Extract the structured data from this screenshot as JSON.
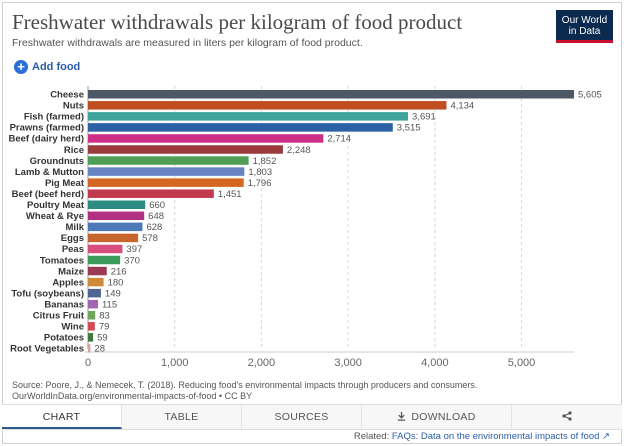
{
  "header": {
    "title": "Freshwater withdrawals per kilogram of food product",
    "subtitle": "Freshwater withdrawals are measured in liters per kilogram of food product.",
    "logo_line1": "Our World",
    "logo_line2": "in Data",
    "add_food_label": "Add food"
  },
  "chart_data": {
    "type": "bar",
    "orientation": "horizontal",
    "title": "Freshwater withdrawals per kilogram of food product",
    "xlim": [
      0,
      5605
    ],
    "xticks": [
      0,
      1000,
      2000,
      3000,
      4000,
      5000
    ],
    "xtick_labels": [
      "0",
      "1,000",
      "2,000",
      "3,000",
      "4,000",
      "5,000"
    ],
    "grid": "vertical dashed",
    "categories": [
      "Cheese",
      "Nuts",
      "Fish (farmed)",
      "Prawns (farmed)",
      "Beef (dairy herd)",
      "Rice",
      "Groundnuts",
      "Lamb & Mutton",
      "Pig Meat",
      "Beef (beef herd)",
      "Poultry Meat",
      "Wheat & Rye",
      "Milk",
      "Eggs",
      "Peas",
      "Tomatoes",
      "Maize",
      "Apples",
      "Tofu (soybeans)",
      "Bananas",
      "Citrus Fruit",
      "Wine",
      "Potatoes",
      "Root Vegetables"
    ],
    "values": [
      5605,
      4134,
      3691,
      3515,
      2714,
      2248,
      1852,
      1803,
      1796,
      1451,
      660,
      648,
      628,
      578,
      397,
      370,
      216,
      180,
      149,
      115,
      83,
      79,
      59,
      28
    ],
    "value_labels": [
      "5,605",
      "4,134",
      "3,691",
      "3,515",
      "2,714",
      "2,248",
      "1,852",
      "1,803",
      "1,796",
      "1,451",
      "660",
      "648",
      "628",
      "578",
      "397",
      "370",
      "216",
      "180",
      "149",
      "115",
      "83",
      "79",
      "59",
      "28"
    ],
    "colors": [
      "#4c5866",
      "#bf4d21",
      "#3ea39b",
      "#2c61a6",
      "#ce2f86",
      "#9b3a3a",
      "#4f9e56",
      "#6883c2",
      "#d66723",
      "#c13a4f",
      "#2d8b83",
      "#b23082",
      "#4c7ab9",
      "#c7652c",
      "#d84e7f",
      "#3b9b5c",
      "#9b3a55",
      "#cf8a3a",
      "#4f6790",
      "#a365b0",
      "#6ea55a",
      "#d24b52",
      "#3d7a3b",
      "#d9a3a3"
    ]
  },
  "footer": {
    "source_line1": "Source: Poore, J., & Nemecek, T. (2018). Reducing food’s environmental impacts through producers and consumers.",
    "source_line2": "OurWorldInData.org/environmental-impacts-of-food • CC BY"
  },
  "tabs": {
    "chart": "CHART",
    "table": "TABLE",
    "sources": "SOURCES",
    "download": "DOWNLOAD",
    "share_icon": "share-icon"
  },
  "related": {
    "prefix": "Related:",
    "link_text": "FAQs: Data on the environmental impacts of food"
  }
}
